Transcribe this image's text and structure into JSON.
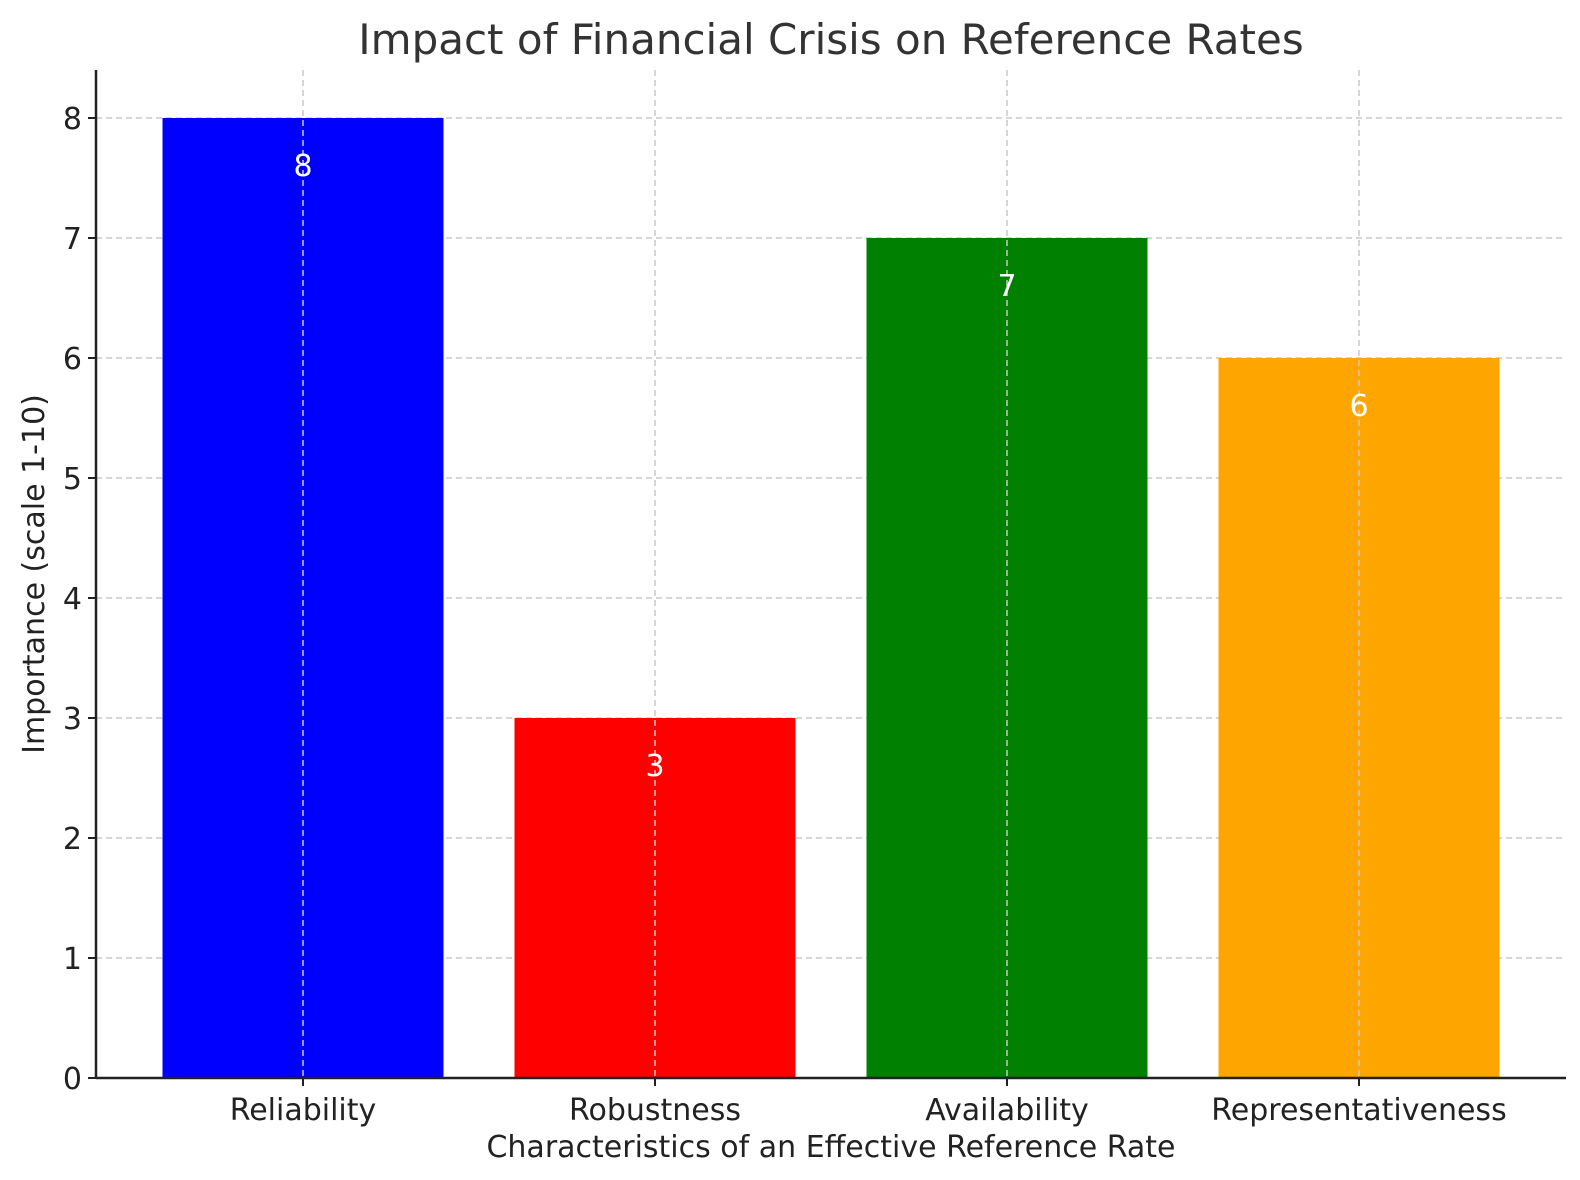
{
  "chart_data": {
    "type": "bar",
    "title": "Impact of Financial Crisis on Reference Rates",
    "xlabel": "Characteristics of an Effective Reference Rate",
    "ylabel": "Importance (scale 1-10)",
    "categories": [
      "Reliability",
      "Robustness",
      "Availability",
      "Representativeness"
    ],
    "values": [
      8,
      3,
      7,
      6
    ],
    "colors": [
      "#0000ff",
      "#ff0000",
      "#008000",
      "#ffa500"
    ],
    "ylim": [
      0,
      8.4
    ],
    "yticks": [
      0,
      1,
      2,
      3,
      4,
      5,
      6,
      7,
      8
    ],
    "grid": true,
    "data_labels": true
  }
}
